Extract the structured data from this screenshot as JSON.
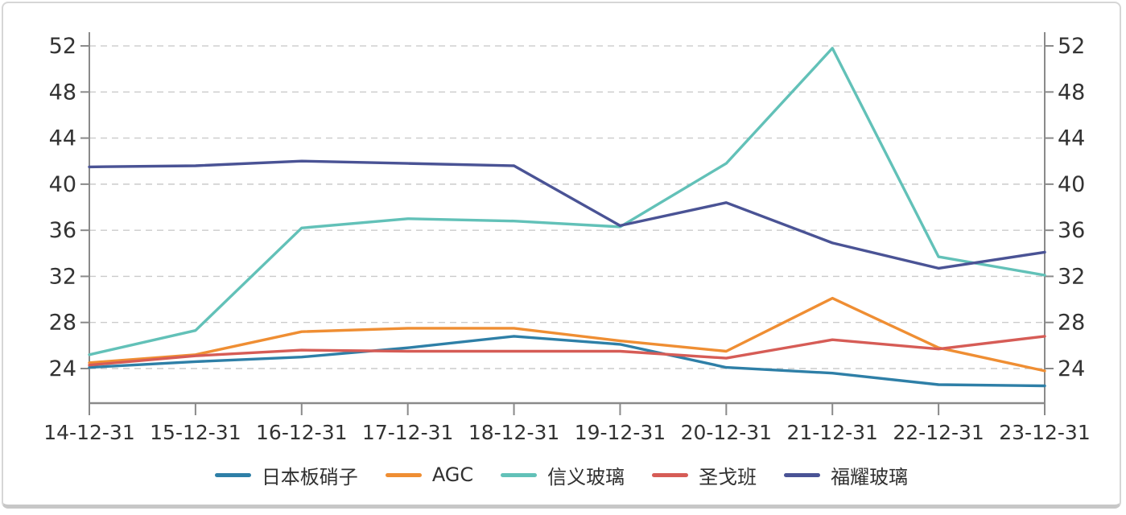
{
  "chart_data": {
    "type": "line",
    "x_labels": [
      "14-12-31",
      "15-12-31",
      "16-12-31",
      "17-12-31",
      "18-12-31",
      "19-12-31",
      "20-12-31",
      "21-12-31",
      "22-12-31",
      "23-12-31"
    ],
    "y_ticks": [
      24,
      28,
      32,
      36,
      40,
      44,
      48,
      52
    ],
    "ylim": [
      20.6,
      53.2
    ],
    "grid": "horizontal-dashed",
    "dual_y_axis": true,
    "legend_position": "bottom",
    "series": [
      {
        "name": "日本板硝子",
        "color": "#2e7fa7",
        "values": [
          24.1,
          24.6,
          25.0,
          25.8,
          26.8,
          26.1,
          24.1,
          23.6,
          22.6,
          22.5
        ]
      },
      {
        "name": "AGC",
        "color": "#ef8e33",
        "values": [
          24.5,
          25.2,
          27.2,
          27.5,
          27.5,
          26.4,
          25.5,
          30.1,
          25.8,
          23.8
        ]
      },
      {
        "name": "信义玻璃",
        "color": "#62c1b8",
        "values": [
          25.2,
          27.3,
          36.2,
          37.0,
          36.8,
          36.3,
          41.8,
          51.8,
          33.7,
          32.1
        ]
      },
      {
        "name": "圣戈班",
        "color": "#d65c56",
        "values": [
          24.3,
          25.1,
          25.6,
          25.5,
          25.5,
          25.5,
          24.9,
          26.5,
          25.7,
          26.8
        ]
      },
      {
        "name": "福耀玻璃",
        "color": "#4a5395",
        "values": [
          41.5,
          41.6,
          42.0,
          41.8,
          41.6,
          36.4,
          38.4,
          34.9,
          32.7,
          34.1
        ]
      }
    ],
    "style": {
      "grid_color": "#cbcbcb",
      "axis_color": "#8a8a8a",
      "tick_label_color": "#333333",
      "background": "#ffffff",
      "border_color": "#d6d6d6"
    }
  }
}
